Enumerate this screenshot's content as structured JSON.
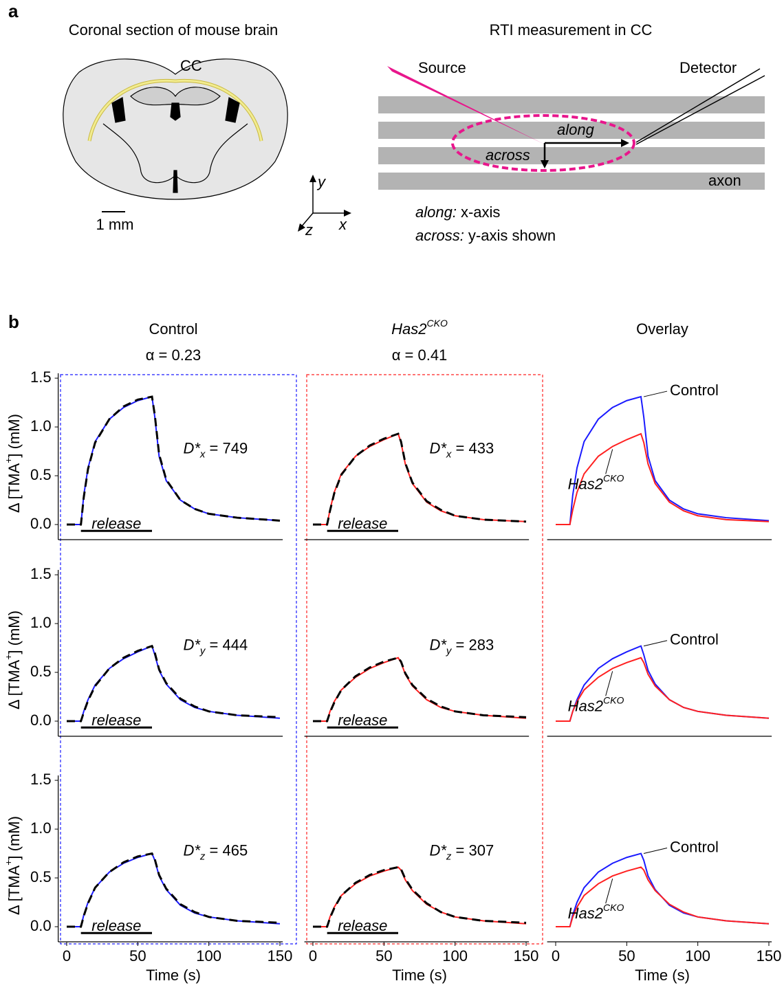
{
  "panel_a": {
    "label": "a",
    "left_title": "Coronal section of mouse brain",
    "cc": "CC",
    "scale": "1 mm",
    "right_title": "RTI measurement in CC",
    "source": "Source",
    "detector": "Detector",
    "along": "along",
    "across": "across",
    "axon": "axon",
    "axis_y": "y",
    "axis_x": "x",
    "axis_z": "z",
    "note_along": {
      "term": "along:",
      "text": "x-axis"
    },
    "note_across": {
      "term": "across:",
      "text": "y-axis shown"
    }
  },
  "panel_b_label": "b",
  "chart_data": [
    {
      "type": "line",
      "title": "Control",
      "subtitle": "α = 0.23",
      "annotation": {
        "text": "D*",
        "sub": "x",
        "rest": " = 749"
      },
      "release": {
        "label": "release",
        "start": 10,
        "end": 60
      },
      "y_label": {
        "text": "Δ [TMA",
        "sup": "+",
        "end": "] (mM)"
      },
      "x": [
        0,
        10,
        12,
        15,
        20,
        30,
        40,
        50,
        60,
        62,
        65,
        70,
        80,
        90,
        100,
        120,
        150
      ],
      "xlim": [
        -6,
        152
      ],
      "ylim": [
        -0.155,
        1.55
      ],
      "yticks": [
        {
          "value": 0,
          "label": "0.0"
        },
        0.5,
        {
          "value": 1,
          "label": "1.0"
        },
        1.5
      ],
      "series": [
        {
          "color": "#1a1aff",
          "values": [
            0,
            0,
            0.3,
            0.58,
            0.85,
            1.08,
            1.2,
            1.27,
            1.31,
            1.1,
            0.7,
            0.45,
            0.25,
            0.16,
            0.11,
            0.07,
            0.04
          ]
        },
        {
          "color": "#000000",
          "dashed": true,
          "values": [
            0,
            0,
            0.28,
            0.57,
            0.84,
            1.08,
            1.21,
            1.28,
            1.31,
            1.12,
            0.72,
            0.46,
            0.25,
            0.16,
            0.11,
            0.07,
            0.04
          ]
        }
      ]
    },
    {
      "type": "line",
      "title": {
        "text": "Has2",
        "sup": "CKO"
      },
      "subtitle": "α = 0.41",
      "annotation": {
        "text": "D*",
        "sub": "x",
        "rest": " = 433"
      },
      "release": {
        "label": "release",
        "start": 10,
        "end": 60
      },
      "x": [
        0,
        10,
        12,
        15,
        20,
        30,
        40,
        50,
        60,
        62,
        65,
        70,
        80,
        90,
        100,
        120,
        150
      ],
      "xlim": [
        -6,
        152
      ],
      "ylim": [
        -0.155,
        1.55
      ],
      "series": [
        {
          "color": "#ff2020",
          "values": [
            0,
            0,
            0.15,
            0.33,
            0.52,
            0.7,
            0.8,
            0.87,
            0.93,
            0.84,
            0.62,
            0.42,
            0.23,
            0.14,
            0.09,
            0.05,
            0.03
          ]
        },
        {
          "color": "#000000",
          "dashed": true,
          "values": [
            0,
            0,
            0.14,
            0.32,
            0.51,
            0.7,
            0.81,
            0.88,
            0.93,
            0.85,
            0.63,
            0.43,
            0.24,
            0.15,
            0.09,
            0.05,
            0.03
          ]
        }
      ]
    },
    {
      "type": "line",
      "title": "Overlay",
      "labels": [
        "Control",
        {
          "text": "Has2",
          "sup": "CKO"
        }
      ],
      "x": [
        0,
        10,
        12,
        15,
        20,
        30,
        40,
        50,
        60,
        62,
        65,
        70,
        80,
        90,
        100,
        120,
        150
      ],
      "xlim": [
        -6,
        152
      ],
      "ylim": [
        -0.155,
        1.55
      ],
      "series": [
        {
          "color": "#1a1aff",
          "values": [
            0,
            0,
            0.3,
            0.58,
            0.85,
            1.08,
            1.2,
            1.27,
            1.31,
            1.1,
            0.7,
            0.45,
            0.25,
            0.16,
            0.11,
            0.07,
            0.04
          ]
        },
        {
          "color": "#ff2020",
          "values": [
            0,
            0,
            0.15,
            0.33,
            0.52,
            0.7,
            0.8,
            0.87,
            0.93,
            0.84,
            0.62,
            0.42,
            0.23,
            0.14,
            0.09,
            0.05,
            0.03
          ]
        }
      ]
    },
    {
      "type": "line",
      "annotation": {
        "text": "D*",
        "sub": "y",
        "rest": " = 444"
      },
      "release": {
        "label": "release",
        "start": 10,
        "end": 60
      },
      "y_label": {
        "text": "Δ [TMA",
        "sup": "+",
        "end": "] (mM)"
      },
      "x": [
        0,
        10,
        12,
        15,
        20,
        30,
        40,
        50,
        60,
        62,
        65,
        70,
        80,
        90,
        100,
        120,
        150
      ],
      "xlim": [
        -6,
        152
      ],
      "ylim": [
        -0.155,
        1.55
      ],
      "yticks": [
        {
          "value": 0,
          "label": "0.0"
        },
        0.5,
        {
          "value": 1,
          "label": "1.0"
        },
        1.5
      ],
      "series": [
        {
          "color": "#1a1aff",
          "values": [
            0,
            0,
            0.1,
            0.22,
            0.37,
            0.54,
            0.64,
            0.71,
            0.77,
            0.68,
            0.52,
            0.38,
            0.22,
            0.14,
            0.1,
            0.06,
            0.03
          ]
        },
        {
          "color": "#000000",
          "dashed": true,
          "values": [
            0,
            0,
            0.09,
            0.21,
            0.36,
            0.54,
            0.65,
            0.72,
            0.77,
            0.7,
            0.53,
            0.39,
            0.23,
            0.15,
            0.1,
            0.06,
            0.04
          ]
        }
      ]
    },
    {
      "type": "line",
      "annotation": {
        "text": "D*",
        "sub": "y",
        "rest": " = 283"
      },
      "release": {
        "label": "release",
        "start": 10,
        "end": 60
      },
      "x": [
        0,
        10,
        12,
        15,
        20,
        30,
        40,
        50,
        60,
        62,
        65,
        70,
        80,
        90,
        100,
        120,
        150
      ],
      "xlim": [
        -6,
        152
      ],
      "ylim": [
        -0.155,
        1.55
      ],
      "series": [
        {
          "color": "#ff2020",
          "values": [
            0,
            0,
            0.1,
            0.2,
            0.32,
            0.45,
            0.54,
            0.6,
            0.65,
            0.6,
            0.48,
            0.36,
            0.22,
            0.14,
            0.1,
            0.06,
            0.03
          ]
        },
        {
          "color": "#000000",
          "dashed": true,
          "values": [
            0,
            0,
            0.09,
            0.19,
            0.32,
            0.46,
            0.55,
            0.61,
            0.65,
            0.61,
            0.49,
            0.37,
            0.23,
            0.15,
            0.1,
            0.06,
            0.04
          ]
        }
      ]
    },
    {
      "type": "line",
      "labels": [
        "Control",
        {
          "text": "Has2",
          "sup": "CKO"
        }
      ],
      "x": [
        0,
        10,
        12,
        15,
        20,
        30,
        40,
        50,
        60,
        62,
        65,
        70,
        80,
        90,
        100,
        120,
        150
      ],
      "xlim": [
        -6,
        152
      ],
      "ylim": [
        -0.155,
        1.55
      ],
      "series": [
        {
          "color": "#1a1aff",
          "values": [
            0,
            0,
            0.1,
            0.22,
            0.37,
            0.54,
            0.64,
            0.71,
            0.77,
            0.68,
            0.52,
            0.38,
            0.22,
            0.14,
            0.1,
            0.06,
            0.03
          ]
        },
        {
          "color": "#ff2020",
          "values": [
            0,
            0,
            0.1,
            0.2,
            0.32,
            0.45,
            0.54,
            0.6,
            0.65,
            0.6,
            0.48,
            0.36,
            0.22,
            0.14,
            0.1,
            0.06,
            0.03
          ]
        }
      ]
    },
    {
      "type": "line",
      "annotation": {
        "text": "D*",
        "sub": "z",
        "rest": " = 465"
      },
      "release": {
        "label": "release",
        "start": 10,
        "end": 60
      },
      "y_label": {
        "text": "Δ [TMA",
        "sup": "+",
        "end": "] (mM)"
      },
      "x_label": "Time (s)",
      "x": [
        0,
        10,
        12,
        15,
        20,
        30,
        40,
        50,
        60,
        62,
        65,
        70,
        80,
        90,
        100,
        120,
        150
      ],
      "xlim": [
        -6,
        152
      ],
      "ylim": [
        -0.155,
        1.55
      ],
      "xticks": [
        0,
        50,
        100,
        150
      ],
      "yticks": [
        {
          "value": 0,
          "label": "0.0"
        },
        0.5,
        {
          "value": 1,
          "label": "1.0"
        },
        1.5
      ],
      "series": [
        {
          "color": "#1a1aff",
          "values": [
            0,
            0,
            0.12,
            0.25,
            0.4,
            0.56,
            0.65,
            0.71,
            0.75,
            0.68,
            0.52,
            0.38,
            0.22,
            0.14,
            0.1,
            0.06,
            0.03
          ]
        },
        {
          "color": "#000000",
          "dashed": true,
          "values": [
            0,
            0,
            0.11,
            0.24,
            0.4,
            0.56,
            0.66,
            0.72,
            0.75,
            0.69,
            0.53,
            0.39,
            0.23,
            0.15,
            0.1,
            0.06,
            0.04
          ]
        }
      ]
    },
    {
      "type": "line",
      "annotation": {
        "text": "D*",
        "sub": "z",
        "rest": " = 307"
      },
      "release": {
        "label": "release",
        "start": 10,
        "end": 60
      },
      "x_label": "Time (s)",
      "x": [
        0,
        10,
        12,
        15,
        20,
        30,
        40,
        50,
        60,
        62,
        65,
        70,
        80,
        90,
        100,
        120,
        150
      ],
      "xlim": [
        -6,
        152
      ],
      "ylim": [
        -0.155,
        1.55
      ],
      "xticks": [
        0,
        50,
        100,
        150
      ],
      "series": [
        {
          "color": "#ff2020",
          "values": [
            0,
            0,
            0.1,
            0.2,
            0.32,
            0.44,
            0.52,
            0.57,
            0.61,
            0.58,
            0.48,
            0.37,
            0.23,
            0.15,
            0.1,
            0.06,
            0.03
          ]
        },
        {
          "color": "#000000",
          "dashed": true,
          "values": [
            0,
            0,
            0.09,
            0.19,
            0.32,
            0.45,
            0.53,
            0.58,
            0.61,
            0.59,
            0.49,
            0.38,
            0.24,
            0.15,
            0.1,
            0.06,
            0.04
          ]
        }
      ]
    },
    {
      "type": "line",
      "labels": [
        "Control",
        {
          "text": "Has2",
          "sup": "CKO"
        }
      ],
      "x_label": "Time (s)",
      "x": [
        0,
        10,
        12,
        15,
        20,
        30,
        40,
        50,
        60,
        62,
        65,
        70,
        80,
        90,
        100,
        120,
        150
      ],
      "xlim": [
        -6,
        152
      ],
      "ylim": [
        -0.155,
        1.55
      ],
      "xticks": [
        0,
        50,
        100,
        150
      ],
      "series": [
        {
          "color": "#1a1aff",
          "values": [
            0,
            0,
            0.12,
            0.25,
            0.4,
            0.56,
            0.65,
            0.71,
            0.75,
            0.68,
            0.52,
            0.38,
            0.22,
            0.14,
            0.1,
            0.06,
            0.03
          ]
        },
        {
          "color": "#ff2020",
          "values": [
            0,
            0,
            0.1,
            0.2,
            0.32,
            0.44,
            0.52,
            0.57,
            0.61,
            0.58,
            0.48,
            0.37,
            0.23,
            0.15,
            0.1,
            0.06,
            0.03
          ]
        }
      ]
    }
  ]
}
